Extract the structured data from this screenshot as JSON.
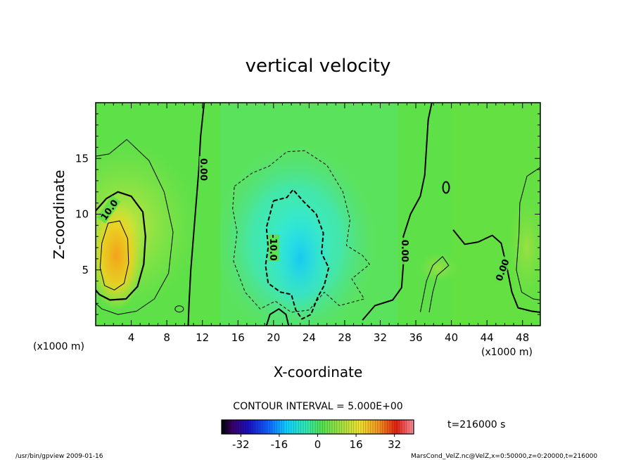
{
  "chart_data": {
    "type": "heatmap",
    "title": "vertical velocity",
    "xlabel": "X-coordinate",
    "ylabel": "Z-coordinate",
    "x_unit_left": "(x1000 m)",
    "x_unit_right": "(x1000 m)",
    "xlim": [
      0,
      50
    ],
    "ylim": [
      0,
      20
    ],
    "x_ticks": [
      "4",
      "8",
      "12",
      "16",
      "20",
      "24",
      "28",
      "32",
      "36",
      "40",
      "44",
      "48"
    ],
    "x_tick_values": [
      4,
      8,
      12,
      16,
      20,
      24,
      28,
      32,
      36,
      40,
      44,
      48
    ],
    "y_ticks": [
      "5",
      "10",
      "15"
    ],
    "y_tick_values": [
      5,
      10,
      15
    ],
    "contour_interval_label": "CONTOUR INTERVAL = 5.000E+00",
    "time_label": "t=216000 s",
    "contour_labels": [
      {
        "text": "10.0",
        "x": 1.5,
        "y": 10.4,
        "angle": -55
      },
      {
        "text": "0.00",
        "x": 12.2,
        "y": 14.0,
        "angle": 90
      },
      {
        "text": "-10.0",
        "x": 20.0,
        "y": 7.0,
        "angle": 90
      },
      {
        "text": "0.00",
        "x": 34.8,
        "y": 6.7,
        "angle": 90
      },
      {
        "text": "0.00",
        "x": 45.7,
        "y": 5.0,
        "angle": -70
      }
    ],
    "colorbar": {
      "ticks": [
        "-32",
        "-16",
        "0",
        "16",
        "32"
      ],
      "tick_values": [
        -32,
        -16,
        0,
        16,
        32
      ],
      "range": [
        -40,
        40
      ]
    },
    "features": [
      {
        "kind": "updraft",
        "x": 2.3,
        "y": 6.3,
        "peak": 22
      },
      {
        "kind": "downdraft",
        "x": 23.0,
        "y": 6.0,
        "peak": -14
      }
    ]
  },
  "footer": {
    "left": "/usr/bin/gpview   2009-01-16",
    "right": "MarsCond_VelZ.nc@VelZ,x=0:50000,z=0:20000,t=216000"
  }
}
